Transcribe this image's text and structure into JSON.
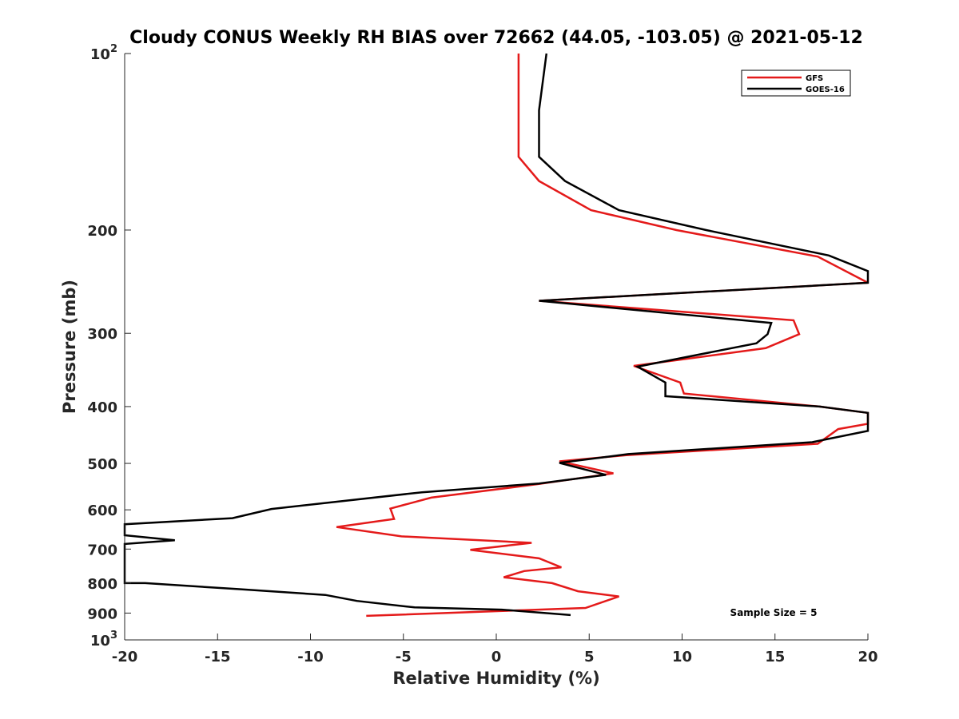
{
  "chart_data": {
    "type": "line",
    "title": "Cloudy CONUS Weekly RH BIAS over 72662 (44.05, -103.05) @ 2021-05-12",
    "xlabel": "Relative Humidity (%)",
    "ylabel": "Pressure (mb)",
    "xlim": [
      -20,
      20
    ],
    "ylim": [
      100,
      1000
    ],
    "y_scale": "log",
    "y_reversed": true,
    "grid": false,
    "legend_position": "top-right",
    "x_ticks": [
      {
        "value": -20,
        "label": "-20"
      },
      {
        "value": -15,
        "label": "-15"
      },
      {
        "value": -10,
        "label": "-10"
      },
      {
        "value": -5,
        "label": "-5"
      },
      {
        "value": 0,
        "label": "0"
      },
      {
        "value": 5,
        "label": "5"
      },
      {
        "value": 10,
        "label": "10"
      },
      {
        "value": 15,
        "label": "15"
      },
      {
        "value": 20,
        "label": "20"
      }
    ],
    "y_ticks": [
      {
        "value": 100,
        "base": "10",
        "exp": "2"
      },
      {
        "value": 200,
        "base": "200",
        "exp": ""
      },
      {
        "value": 300,
        "base": "300",
        "exp": ""
      },
      {
        "value": 400,
        "base": "400",
        "exp": ""
      },
      {
        "value": 500,
        "base": "500",
        "exp": ""
      },
      {
        "value": 600,
        "base": "600",
        "exp": ""
      },
      {
        "value": 700,
        "base": "700",
        "exp": ""
      },
      {
        "value": 800,
        "base": "800",
        "exp": ""
      },
      {
        "value": 900,
        "base": "900",
        "exp": ""
      },
      {
        "value": 1000,
        "base": "10",
        "exp": "3"
      }
    ],
    "annotation": "Sample Size = 5",
    "series": [
      {
        "name": "GFS",
        "color": "#e41a1a",
        "points": [
          {
            "x": 1.2,
            "p": 100
          },
          {
            "x": 1.2,
            "p": 125
          },
          {
            "x": 1.2,
            "p": 150
          },
          {
            "x": 2.3,
            "p": 165
          },
          {
            "x": 5.1,
            "p": 185
          },
          {
            "x": 9.7,
            "p": 200
          },
          {
            "x": 17.3,
            "p": 222
          },
          {
            "x": 20.0,
            "p": 246
          },
          {
            "x": 2.3,
            "p": 264
          },
          {
            "x": 16.0,
            "p": 285
          },
          {
            "x": 16.3,
            "p": 301
          },
          {
            "x": 14.5,
            "p": 318
          },
          {
            "x": 7.4,
            "p": 341
          },
          {
            "x": 9.9,
            "p": 364
          },
          {
            "x": 10.1,
            "p": 380
          },
          {
            "x": 17.4,
            "p": 400
          },
          {
            "x": 20.0,
            "p": 410
          },
          {
            "x": 20.0,
            "p": 428
          },
          {
            "x": 18.4,
            "p": 437
          },
          {
            "x": 17.3,
            "p": 463
          },
          {
            "x": 7.0,
            "p": 484
          },
          {
            "x": 3.4,
            "p": 496
          },
          {
            "x": 6.3,
            "p": 520
          },
          {
            "x": 2.3,
            "p": 542
          },
          {
            "x": -3.5,
            "p": 572
          },
          {
            "x": -5.7,
            "p": 597
          },
          {
            "x": -5.5,
            "p": 622
          },
          {
            "x": -8.6,
            "p": 642
          },
          {
            "x": -5.1,
            "p": 666
          },
          {
            "x": 1.9,
            "p": 683
          },
          {
            "x": -1.4,
            "p": 702
          },
          {
            "x": 2.3,
            "p": 726
          },
          {
            "x": 3.5,
            "p": 752
          },
          {
            "x": 1.5,
            "p": 763
          },
          {
            "x": 0.4,
            "p": 782
          },
          {
            "x": 3.0,
            "p": 800
          },
          {
            "x": 4.4,
            "p": 826
          },
          {
            "x": 6.6,
            "p": 843
          },
          {
            "x": 4.8,
            "p": 882
          },
          {
            "x": -7.0,
            "p": 910
          }
        ]
      },
      {
        "name": "GOES-16",
        "color": "#000000",
        "points": [
          {
            "x": 2.7,
            "p": 100
          },
          {
            "x": 2.3,
            "p": 125
          },
          {
            "x": 2.3,
            "p": 150
          },
          {
            "x": 3.7,
            "p": 165
          },
          {
            "x": 6.6,
            "p": 185
          },
          {
            "x": 11.3,
            "p": 200
          },
          {
            "x": 17.9,
            "p": 221
          },
          {
            "x": 20.0,
            "p": 235
          },
          {
            "x": 20.0,
            "p": 246
          },
          {
            "x": 2.3,
            "p": 264
          },
          {
            "x": 14.8,
            "p": 288
          },
          {
            "x": 14.6,
            "p": 301
          },
          {
            "x": 14.0,
            "p": 312
          },
          {
            "x": 7.6,
            "p": 342
          },
          {
            "x": 9.1,
            "p": 364
          },
          {
            "x": 9.1,
            "p": 384
          },
          {
            "x": 17.4,
            "p": 400
          },
          {
            "x": 20.0,
            "p": 410
          },
          {
            "x": 20.0,
            "p": 440
          },
          {
            "x": 17.0,
            "p": 460
          },
          {
            "x": 7.1,
            "p": 482
          },
          {
            "x": 3.4,
            "p": 499
          },
          {
            "x": 5.9,
            "p": 523
          },
          {
            "x": 2.3,
            "p": 541
          },
          {
            "x": -4.0,
            "p": 560
          },
          {
            "x": -12.1,
            "p": 598
          },
          {
            "x": -14.2,
            "p": 620
          },
          {
            "x": -20.0,
            "p": 635
          },
          {
            "x": -20.0,
            "p": 663
          },
          {
            "x": -17.3,
            "p": 676
          },
          {
            "x": -20.0,
            "p": 686
          },
          {
            "x": -20.0,
            "p": 800
          },
          {
            "x": -18.9,
            "p": 800
          },
          {
            "x": -13.9,
            "p": 819
          },
          {
            "x": -9.2,
            "p": 838
          },
          {
            "x": -7.5,
            "p": 858
          },
          {
            "x": -4.4,
            "p": 880
          },
          {
            "x": 0.3,
            "p": 888
          },
          {
            "x": 4.0,
            "p": 907
          }
        ]
      }
    ]
  }
}
